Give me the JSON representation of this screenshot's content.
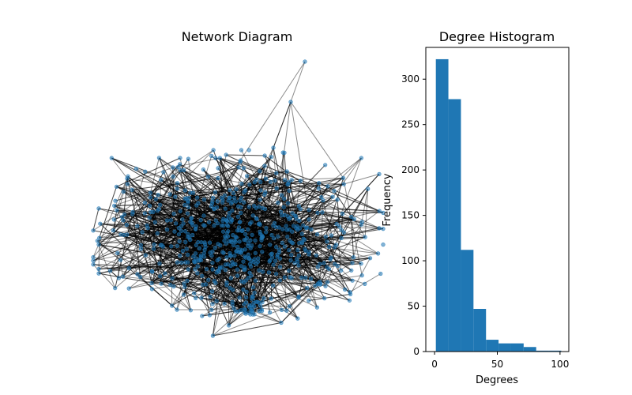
{
  "chart_data": [
    {
      "type": "network",
      "title": "Network Diagram",
      "node_color": "#1f77b4",
      "edge_color": "#000000"
    },
    {
      "type": "bar",
      "title": "Degree Histogram",
      "xlabel": "Degrees",
      "ylabel": "Frequency",
      "bin_edges": [
        1,
        11,
        21,
        31,
        41,
        51,
        61,
        71,
        81,
        91,
        101
      ],
      "values": [
        322,
        278,
        112,
        47,
        13,
        9,
        9,
        5,
        1,
        1
      ],
      "xlim": [
        -7,
        107
      ],
      "ylim": [
        0,
        335
      ],
      "xticks": [
        0,
        50,
        100
      ],
      "yticks": [
        0,
        50,
        100,
        150,
        200,
        250,
        300
      ],
      "bar_color": "#1f77b4",
      "grid": false
    }
  ]
}
